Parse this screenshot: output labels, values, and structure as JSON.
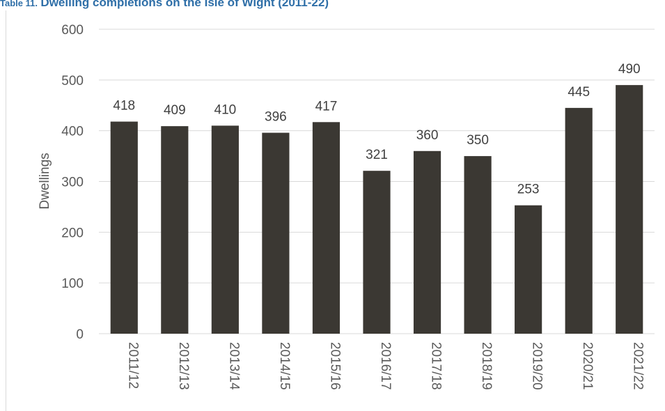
{
  "caption": {
    "lead": "Table 11.",
    "title": "Dwelling completions on the Isle of Wight (2011-22)"
  },
  "chart_data": {
    "type": "bar",
    "categories": [
      "2011/12",
      "2012/13",
      "2013/14",
      "2014/15",
      "2015/16",
      "2016/17",
      "2017/18",
      "2018/19",
      "2019/20",
      "2020/21",
      "2021/22"
    ],
    "values": [
      418,
      409,
      410,
      396,
      417,
      321,
      360,
      350,
      253,
      445,
      490
    ],
    "ylabel": "Dwellings",
    "ylim": [
      0,
      600
    ],
    "yticks": [
      0,
      100,
      200,
      300,
      400,
      500,
      600
    ],
    "grid": true,
    "bar_color": "#3b3833",
    "grid_color": "#d9d9d9",
    "data_labels": true
  }
}
